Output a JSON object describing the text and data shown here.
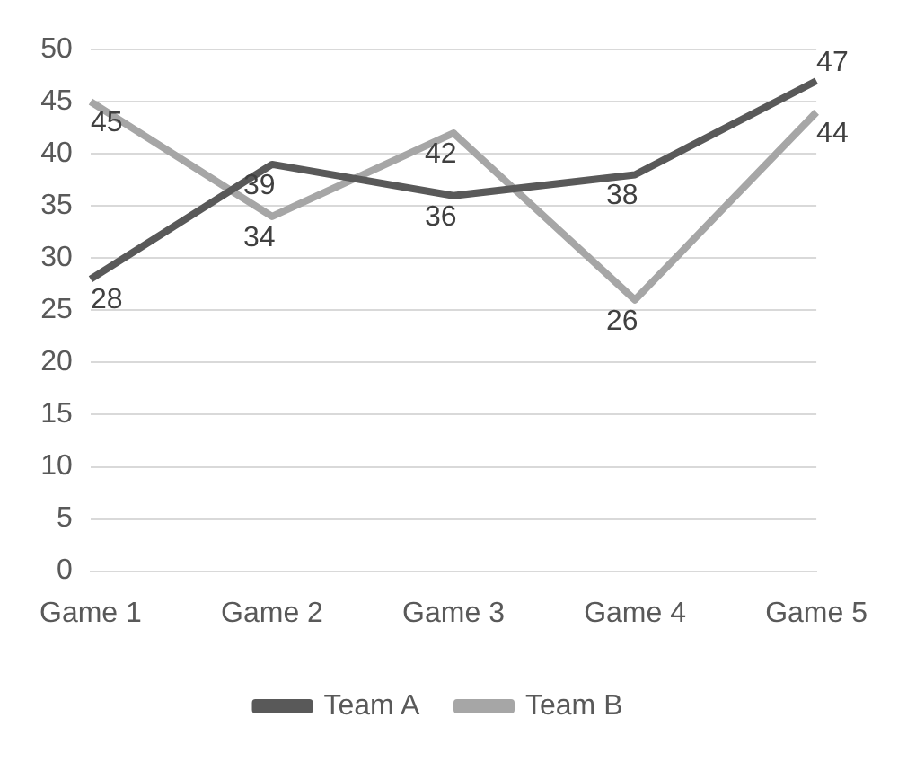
{
  "chart_data": {
    "type": "line",
    "categories": [
      "Game 1",
      "Game 2",
      "Game 3",
      "Game 4",
      "Game 5"
    ],
    "series": [
      {
        "name": "Team A",
        "color": "#595959",
        "values": [
          28,
          39,
          36,
          38,
          47
        ]
      },
      {
        "name": "Team B",
        "color": "#a6a6a6",
        "values": [
          45,
          34,
          42,
          26,
          44
        ]
      }
    ],
    "ylim": [
      0,
      50
    ],
    "yticks": [
      0,
      5,
      10,
      15,
      20,
      25,
      30,
      35,
      40,
      45,
      50
    ],
    "grid": "y",
    "legend": "bottom",
    "data_labels": true,
    "marker": "none",
    "line_style": "solid"
  }
}
